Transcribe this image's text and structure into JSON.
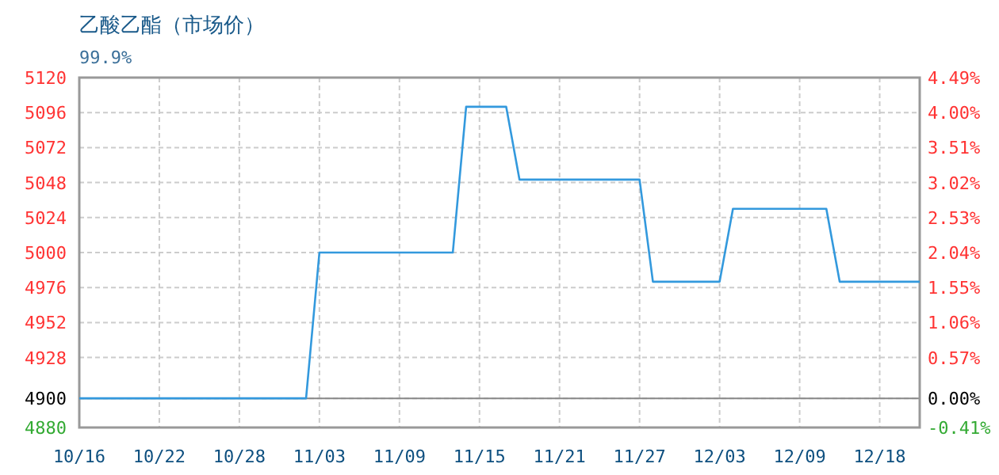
{
  "chart_data": {
    "type": "line",
    "title": "乙酸乙酯（市场价）",
    "subtitle": "99.9%",
    "categories": [
      "10/16",
      null,
      null,
      null,
      null,
      null,
      "10/22",
      null,
      null,
      null,
      null,
      null,
      "10/28",
      null,
      null,
      null,
      null,
      null,
      "11/03",
      null,
      null,
      null,
      null,
      null,
      "11/09",
      null,
      null,
      null,
      null,
      null,
      "11/15",
      null,
      null,
      null,
      null,
      null,
      "11/21",
      null,
      null,
      null,
      null,
      null,
      "11/27",
      null,
      null,
      null,
      null,
      null,
      "12/03",
      null,
      null,
      null,
      null,
      null,
      "12/09",
      null,
      null,
      null,
      null,
      null,
      "12/18",
      null,
      null,
      null
    ],
    "series": [
      {
        "color": "#3399dd",
        "values": [
          4900,
          4900,
          4900,
          4900,
          4900,
          4900,
          4900,
          4900,
          4900,
          4900,
          4900,
          4900,
          4900,
          4900,
          4900,
          4900,
          4900,
          4900,
          5000,
          5000,
          5000,
          5000,
          5000,
          5000,
          5000,
          5000,
          5000,
          5000,
          5000,
          5100,
          5100,
          5100,
          5100,
          5050,
          5050,
          5050,
          5050,
          5050,
          5050,
          5050,
          5050,
          5050,
          5050,
          4980,
          4980,
          4980,
          4980,
          4980,
          4980,
          5030,
          5030,
          5030,
          5030,
          5030,
          5030,
          5030,
          5030,
          4980,
          4980,
          4980,
          4980,
          4980,
          4980,
          4980
        ]
      }
    ],
    "ylim": [
      4880,
      5120
    ],
    "yticks": [
      4880,
      4900,
      4928,
      4952,
      4976,
      5000,
      5024,
      5048,
      5072,
      5096,
      5120
    ],
    "y2lim": [
      -0.41,
      4.49
    ],
    "y2ticks": [
      {
        "value": -0.41,
        "label": "-0.41%"
      },
      {
        "value": 0,
        "label": "0.00%"
      },
      {
        "value": 0.57,
        "label": "0.57%"
      },
      {
        "value": 1.06,
        "label": "1.06%"
      },
      {
        "value": 1.55,
        "label": "1.55%"
      },
      {
        "value": 2.04,
        "label": "2.04%"
      },
      {
        "value": 2.53,
        "label": "2.53%"
      },
      {
        "value": 3.02,
        "label": "3.02%"
      },
      {
        "value": 3.51,
        "label": "3.51%"
      },
      {
        "value": 4.0,
        "label": "4.00%"
      },
      {
        "value": 4.49,
        "label": "4.49%"
      }
    ],
    "ref_lines": [
      {
        "axis": "y",
        "value": 4900,
        "color": "#888888"
      }
    ],
    "grid": true,
    "marker": "none",
    "line_style": "solid"
  }
}
